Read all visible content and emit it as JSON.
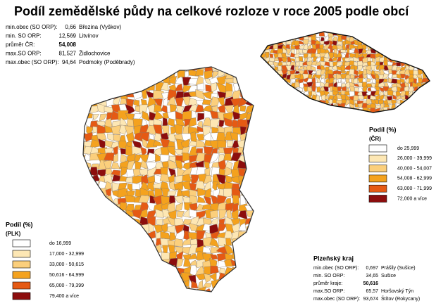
{
  "title": "Podíl zemědělské půdy na celkové rozloze v roce 2005 podle obcí",
  "cr_stats": {
    "rows": [
      {
        "label": "min.obec (SO ORP):",
        "value": "0,66",
        "place": "Březina (Vyškov)"
      },
      {
        "label": "min. SO ORP:",
        "value": "12,569",
        "place": "Litvínov"
      },
      {
        "label": "průměr ČR:",
        "value": "54,008"
      },
      {
        "label": "max.SO ORP:",
        "value": "81,527",
        "place": "Židlochovice"
      },
      {
        "label": "max.obec (SO ORP):",
        "value": "94,64",
        "place": "Podmoky (Poděbrady)"
      }
    ]
  },
  "cr_legend": {
    "title": "Podíl (%)",
    "subtitle": "(ČR)",
    "items": [
      {
        "label": "do 25,999",
        "color": "#ffffff"
      },
      {
        "label": "26,000 - 39,999",
        "color": "#fde7b4"
      },
      {
        "label": "40,000 - 54,007",
        "color": "#fbcf7c"
      },
      {
        "label": "54,008 - 62,999",
        "color": "#f4a21e"
      },
      {
        "label": "63,000 - 71,999",
        "color": "#e55a14"
      },
      {
        "label": "72,000 a více",
        "color": "#8c0d0d"
      }
    ]
  },
  "plk_legend": {
    "title": "Podíl (%)",
    "subtitle": "(PLK)",
    "items": [
      {
        "label": "do 16,999",
        "color": "#ffffff"
      },
      {
        "label": "17,000 - 32,999",
        "color": "#fde7b4"
      },
      {
        "label": "33,000 - 50,615",
        "color": "#fbcf7c"
      },
      {
        "label": "50,616 - 64,999",
        "color": "#f4a21e"
      },
      {
        "label": "65,000 - 79,399",
        "color": "#e55a14"
      },
      {
        "label": "79,400 a více",
        "color": "#8c0d0d"
      }
    ]
  },
  "plk_stats": {
    "title": "Plzeňský kraj",
    "rows": [
      {
        "label": "min.obec (SO ORP):",
        "value": "0,697",
        "place": "Prášily (Sušice)"
      },
      {
        "label": "min. SO ORP:",
        "value": "34,65",
        "place": "Sušice"
      },
      {
        "label": "průměr kraje:",
        "value": "50,616"
      },
      {
        "label": "max.SO ORP:",
        "value": "65,57",
        "place": "Horšovský Týn"
      },
      {
        "label": "max.obec (SO ORP):",
        "value": "93,674",
        "place": "Štítov (Rokycany)"
      }
    ]
  }
}
